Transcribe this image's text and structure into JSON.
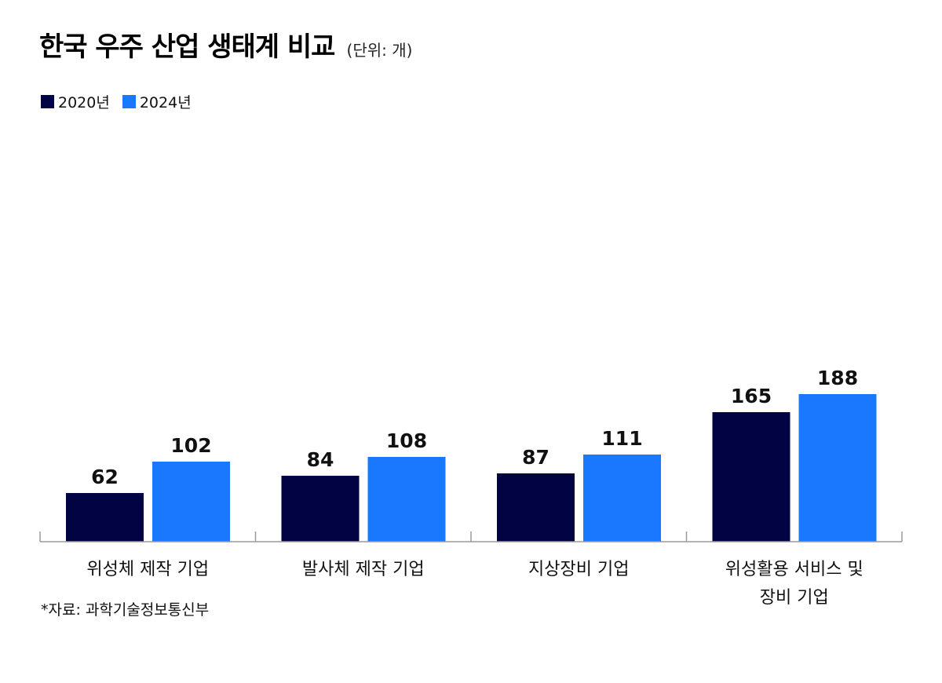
{
  "title": "한국 우주 산업 생태계 비교",
  "unit_note": "(단위: 개)",
  "source_note": "*자료: 과학기술정보통신부",
  "chart_data": {
    "type": "bar",
    "title": "한국 우주 산업 생태계 비교",
    "unit": "(단위: 개)",
    "categories": [
      [
        "위성체 제작 기업"
      ],
      [
        "발사체 제작 기업"
      ],
      [
        "지상장비 기업"
      ],
      [
        "위성활용 서비스 및",
        "장비 기업"
      ]
    ],
    "series": [
      {
        "name": "2020년",
        "color": "#020342",
        "values": [
          62,
          84,
          87,
          165
        ]
      },
      {
        "name": "2024년",
        "color": "#1a77ff",
        "values": [
          102,
          108,
          111,
          188
        ]
      }
    ],
    "ylim": [
      0,
      200
    ],
    "grid": false,
    "legend_position": "top-left"
  }
}
